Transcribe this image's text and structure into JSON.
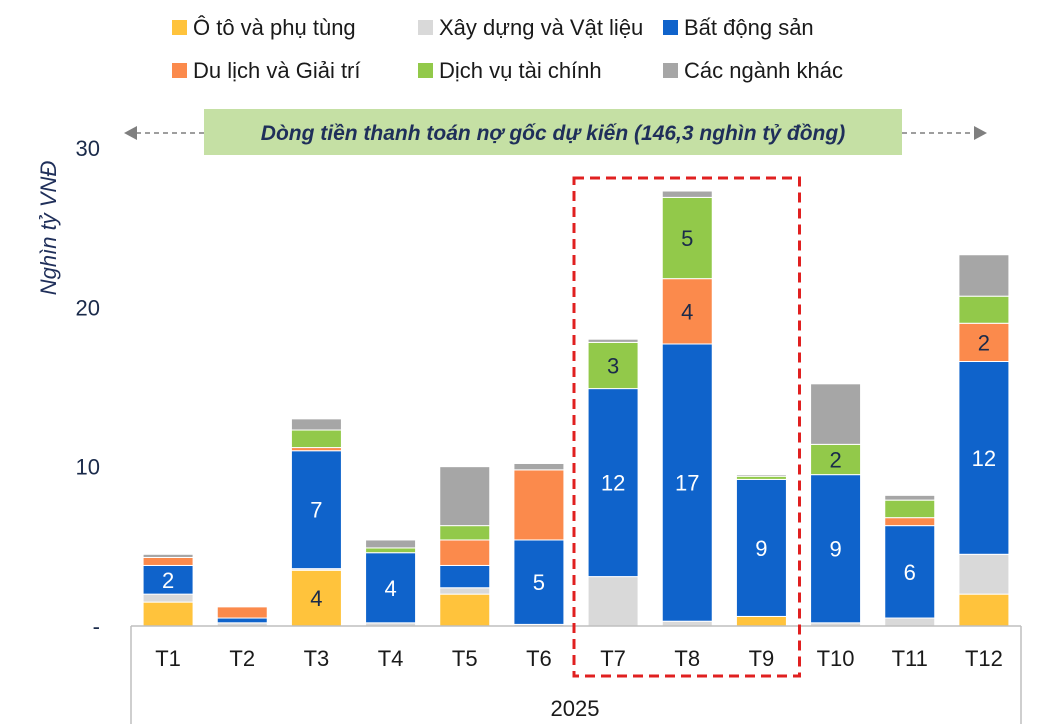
{
  "chart_data": {
    "type": "bar",
    "stacked": true,
    "ylabel": "Nghìn tỷ VNĐ",
    "xlabel": "2025",
    "ylim": [
      0,
      30
    ],
    "yticks": [
      "-",
      "10",
      "20",
      "30"
    ],
    "categories": [
      "T1",
      "T2",
      "T3",
      "T4",
      "T5",
      "T6",
      "T7",
      "T8",
      "T9",
      "T10",
      "T11",
      "T12"
    ],
    "banner": "Dòng tiền thanh toán nợ gốc dự kiến (146,3 nghìn tỷ đồng)",
    "highlight": {
      "from": "T7",
      "to": "T9",
      "style": "red-dashed-box"
    },
    "legend_position": "top",
    "series": [
      {
        "name": "Ô tô và phụ tùng",
        "color": "#FFC33C",
        "values": [
          1.5,
          0,
          3.5,
          0,
          2.0,
          0,
          0,
          0,
          0.6,
          0,
          0,
          2.0
        ],
        "labels": [
          "",
          "",
          "4",
          "",
          "",
          "",
          "",
          "",
          "",
          "",
          "",
          ""
        ]
      },
      {
        "name": "Xây dựng và Vật liệu",
        "color": "#D9D9D9",
        "values": [
          0.5,
          0.2,
          0.1,
          0.2,
          0.4,
          0.1,
          3.1,
          0.3,
          0,
          0.2,
          0.5,
          2.5
        ],
        "labels": [
          "",
          "",
          "",
          "",
          "",
          "",
          "",
          "",
          "",
          "",
          "",
          ""
        ]
      },
      {
        "name": "Bất động sản",
        "color": "#0F63CB",
        "values": [
          1.8,
          0.3,
          7.4,
          4.4,
          1.4,
          5.3,
          11.8,
          17.4,
          8.6,
          9.3,
          5.8,
          12.1
        ],
        "labels": [
          "2",
          "",
          "7",
          "4",
          "",
          "5",
          "12",
          "17",
          "9",
          "9",
          "6",
          "12"
        ]
      },
      {
        "name": "Du lịch và Giải trí",
        "color": "#FB8A4C",
        "values": [
          0.5,
          0.7,
          0.2,
          0,
          1.6,
          4.4,
          0,
          4.1,
          0,
          0,
          0.5,
          2.4
        ],
        "labels": [
          "",
          "",
          "",
          "",
          "",
          "",
          "",
          "4",
          "",
          "",
          "",
          "2"
        ]
      },
      {
        "name": "Dịch vụ tài chính",
        "color": "#92C94A",
        "values": [
          0,
          0,
          1.1,
          0.3,
          0.9,
          0,
          2.9,
          5.1,
          0.2,
          1.9,
          1.1,
          1.7
        ],
        "labels": [
          "",
          "",
          "",
          "",
          "",
          "",
          "3",
          "5",
          "",
          "2",
          "",
          ""
        ]
      },
      {
        "name": "Các ngành khác",
        "color": "#A6A6A6",
        "values": [
          0.2,
          0,
          0.7,
          0.5,
          3.7,
          0.4,
          0.2,
          0.4,
          0.1,
          3.8,
          0.3,
          2.6
        ],
        "labels": [
          "",
          "",
          "",
          "",
          "",
          "",
          "",
          "",
          "",
          "",
          "",
          ""
        ]
      }
    ]
  }
}
